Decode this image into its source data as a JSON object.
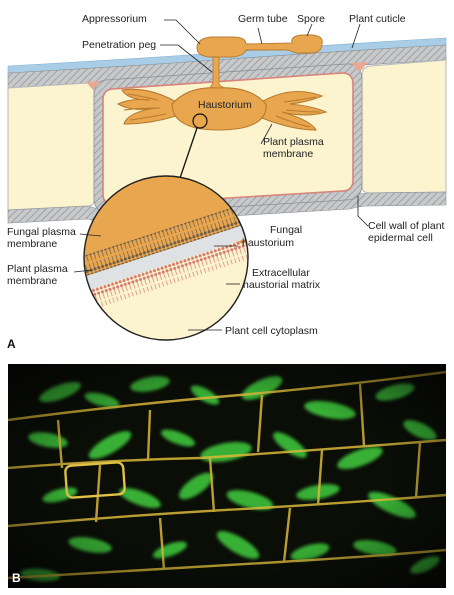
{
  "labels": {
    "appressorium": "Appressorium",
    "germ_tube": "Germ tube",
    "spore": "Spore",
    "plant_cuticle": "Plant cuticle",
    "penetration_peg": "Penetration peg",
    "haustorium": "Haustorium",
    "plant_plasma_membrane_1": "Plant plasma",
    "plant_plasma_membrane_2": "membrane",
    "cell_wall_1": "Cell wall of plant",
    "cell_wall_2": "epidermal cell",
    "fungal_plasma_membrane_1": "Fungal plasma",
    "fungal_plasma_membrane_2": "membrane",
    "plant_membrane_zoom_1": "Plant plasma",
    "plant_membrane_zoom_2": "membrane",
    "fungal_haustorium_1": "Fungal",
    "fungal_haustorium_2": "haustorium",
    "extracellular_matrix_1": "Extracellular",
    "extracellular_matrix_2": "haustorial matrix",
    "plant_cytoplasm": "Plant cell cytoplasm"
  },
  "panels": {
    "a": "A",
    "b": "B"
  },
  "colors": {
    "fungus": "#E8A64E",
    "fungus_edge": "#B87A2E",
    "cytoplasm": "#FBF4CF",
    "cell_wall": "#B5B8BA",
    "membrane": "#D8837B",
    "cuticle": "#A9CDE6",
    "micrograph_bg": "#0B0E07",
    "cell_wall_fluor": "#D9B83A",
    "fungal_fluor": "#3DC23A"
  }
}
